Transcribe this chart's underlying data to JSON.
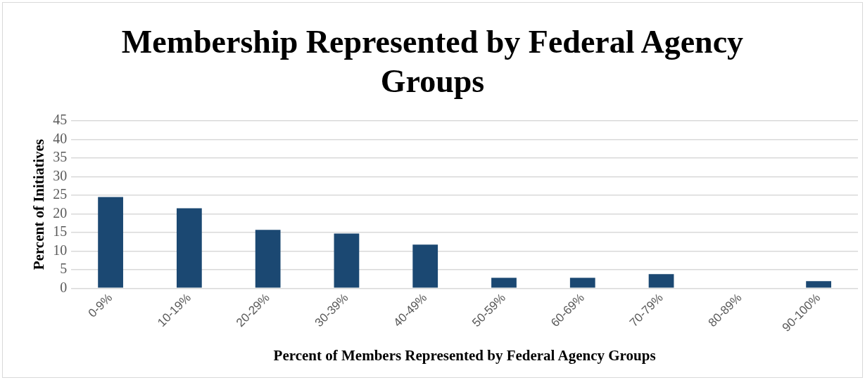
{
  "chart_data": {
    "type": "bar",
    "title": "Membership Represented by Federal Agency Groups",
    "xlabel": "Percent of Members Represented by Federal Agency Groups",
    "ylabel": "Percent of Initiatives",
    "categories": [
      "0-9%",
      "10-19%",
      "20-29%",
      "30-39%",
      "40-49%",
      "50-59%",
      "60-69%",
      "70-79%",
      "80-89%",
      "90-100%"
    ],
    "values": [
      24.5,
      21.5,
      15.7,
      14.7,
      11.7,
      2.8,
      2.8,
      3.8,
      0,
      1.9
    ],
    "color": "#1b4872",
    "ylim": [
      0,
      45
    ],
    "yticks": [
      0,
      5,
      10,
      15,
      20,
      25,
      30,
      35,
      40,
      45
    ],
    "grid": "y"
  }
}
